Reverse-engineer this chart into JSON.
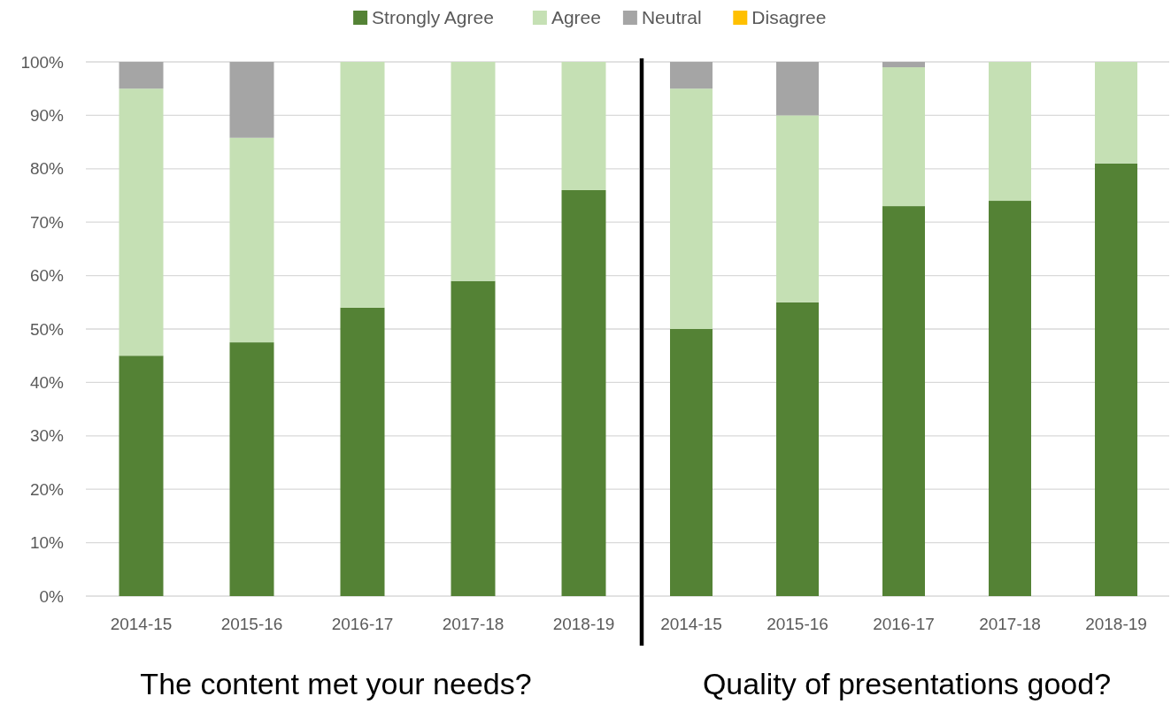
{
  "chart_data": [
    {
      "type": "bar",
      "title": "The content met your needs?",
      "categories": [
        "2014-15",
        "2015-16",
        "2016-17",
        "2017-18",
        "2018-19"
      ],
      "stacked": true,
      "ylim": [
        0,
        100
      ],
      "yticks": [
        {
          "value": 0,
          "label": "0%"
        },
        {
          "value": 10,
          "label": "10%"
        },
        {
          "value": 20,
          "label": "20%"
        },
        {
          "value": 30,
          "label": "30%"
        },
        {
          "value": 40,
          "label": "40%"
        },
        {
          "value": 50,
          "label": "50%"
        },
        {
          "value": 60,
          "label": "60%"
        },
        {
          "value": 70,
          "label": "70%"
        },
        {
          "value": 80,
          "label": "80%"
        },
        {
          "value": 90,
          "label": "90%"
        },
        {
          "value": 100,
          "label": "100%"
        }
      ],
      "grid": "y",
      "legend": "top",
      "series": [
        {
          "name": "Strongly Agree",
          "color": "#548235",
          "values": [
            45,
            47.5,
            54,
            59,
            76
          ]
        },
        {
          "name": "Agree",
          "color": "#c5e0b4",
          "values": [
            50,
            38.3,
            46,
            41,
            24
          ]
        },
        {
          "name": "Neutral",
          "color": "#a5a5a5",
          "values": [
            5,
            14.2,
            0,
            0,
            0
          ]
        },
        {
          "name": "Disagree",
          "color": "#ffc000",
          "values": [
            0,
            0,
            0,
            0,
            0
          ]
        }
      ]
    },
    {
      "type": "bar",
      "title": "Quality of presentations good?",
      "categories": [
        "2014-15",
        "2015-16",
        "2016-17",
        "2017-18",
        "2018-19"
      ],
      "stacked": true,
      "ylim": [
        0,
        100
      ],
      "yticks": [
        0,
        10,
        20,
        30,
        40,
        50,
        60,
        70,
        80,
        90,
        100
      ],
      "grid": "y",
      "tick_labels": "x",
      "series": [
        {
          "color": "#548235",
          "values": [
            50,
            55,
            73,
            74,
            81
          ]
        },
        {
          "color": "#c5e0b4",
          "values": [
            45,
            35,
            26,
            26,
            19
          ]
        },
        {
          "color": "#a5a5a5",
          "values": [
            5,
            10,
            1,
            0,
            0
          ]
        },
        {
          "color": "#ffc000",
          "values": [
            0,
            0,
            0,
            0,
            0
          ]
        }
      ]
    }
  ]
}
